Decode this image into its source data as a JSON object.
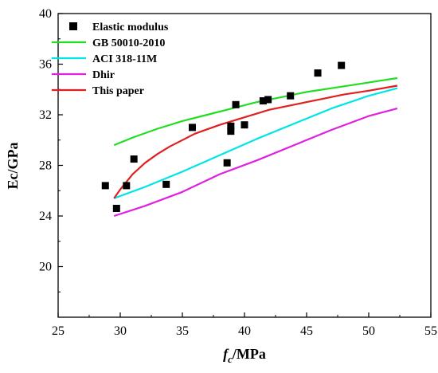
{
  "chart_data": {
    "type": "scatter",
    "xlabel_italic": "f",
    "xlabel_sub": "c",
    "xlabel_rest": "/MPa",
    "ylabel": "Ec/GPa",
    "xlim": [
      25,
      55
    ],
    "ylim": [
      16,
      40
    ],
    "xticks": [
      25,
      30,
      35,
      40,
      45,
      50,
      55
    ],
    "yticks": [
      20,
      24,
      28,
      32,
      36,
      40
    ],
    "legend_position": "top-left",
    "grid": false,
    "scatter": {
      "name": "Elastic modulus",
      "color": "#000000",
      "points": [
        [
          28.8,
          26.4
        ],
        [
          29.7,
          24.6
        ],
        [
          30.5,
          26.4
        ],
        [
          31.1,
          28.5
        ],
        [
          33.7,
          26.5
        ],
        [
          35.8,
          31.0
        ],
        [
          38.6,
          28.2
        ],
        [
          38.9,
          31.1
        ],
        [
          38.9,
          30.7
        ],
        [
          39.3,
          32.8
        ],
        [
          40.0,
          31.2
        ],
        [
          41.5,
          33.1
        ],
        [
          41.9,
          33.2
        ],
        [
          43.7,
          33.5
        ],
        [
          45.9,
          35.3
        ],
        [
          47.8,
          35.9
        ]
      ]
    },
    "series": [
      {
        "name": "GB 50010-2010",
        "color": "#22dd22",
        "x": [
          29.5,
          31,
          33,
          35,
          37,
          39,
          41,
          43,
          45,
          47,
          49,
          51,
          52.3
        ],
        "y": [
          29.6,
          30.2,
          30.9,
          31.5,
          32.0,
          32.5,
          33.0,
          33.4,
          33.8,
          34.1,
          34.4,
          34.7,
          34.9
        ]
      },
      {
        "name": "ACI 318-11M",
        "color": "#00e5e5",
        "x": [
          29.5,
          32,
          35,
          38,
          41,
          44,
          47,
          50,
          52.3
        ],
        "y": [
          25.4,
          26.3,
          27.5,
          28.8,
          30.1,
          31.3,
          32.5,
          33.5,
          34.1
        ]
      },
      {
        "name": "Dhir",
        "color": "#e020e0",
        "x": [
          29.5,
          32,
          35,
          38,
          41,
          44,
          47,
          50,
          52.3
        ],
        "y": [
          24.0,
          24.8,
          25.9,
          27.3,
          28.4,
          29.6,
          30.8,
          31.9,
          32.5
        ]
      },
      {
        "name": "This paper",
        "color": "#e02020",
        "x": [
          29.5,
          30,
          31,
          32,
          33,
          34,
          35,
          36,
          38,
          40,
          42,
          44,
          46,
          48,
          50,
          52.3
        ],
        "y": [
          25.4,
          26.1,
          27.3,
          28.2,
          28.9,
          29.5,
          30.0,
          30.5,
          31.2,
          31.8,
          32.4,
          32.8,
          33.2,
          33.6,
          33.9,
          34.3
        ]
      }
    ]
  }
}
